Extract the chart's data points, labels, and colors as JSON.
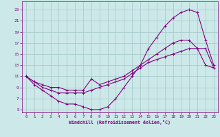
{
  "xlabel": "Windchill (Refroidissement éolien,°C)",
  "x_ticks": [
    0,
    1,
    2,
    3,
    4,
    5,
    6,
    7,
    8,
    9,
    10,
    11,
    12,
    13,
    14,
    15,
    16,
    17,
    18,
    19,
    20,
    21,
    22,
    23
  ],
  "y_ticks": [
    5,
    7,
    9,
    11,
    13,
    15,
    17,
    19,
    21,
    23
  ],
  "ylim": [
    4.5,
    24.5
  ],
  "xlim": [
    -0.5,
    23.5
  ],
  "bg_color": "#cce8e8",
  "line_color": "#800080",
  "grid_color": "#aacccc",
  "line1_x": [
    0,
    1,
    2,
    3,
    4,
    5,
    6,
    7,
    8,
    9,
    10,
    11,
    12,
    13,
    14,
    15,
    16,
    17,
    18,
    19,
    20,
    21,
    22,
    23
  ],
  "line1_y": [
    11,
    9.5,
    8.5,
    7.5,
    6.5,
    6.0,
    6.0,
    5.5,
    5.0,
    5.0,
    5.5,
    7.0,
    9.0,
    11.0,
    13.0,
    16.0,
    18.0,
    20.0,
    21.5,
    22.5,
    23.0,
    22.5,
    17.5,
    13.0
  ],
  "line2_x": [
    0,
    1,
    2,
    3,
    4,
    5,
    6,
    7,
    8,
    9,
    10,
    11,
    12,
    13,
    14,
    15,
    16,
    17,
    18,
    19,
    20,
    21,
    22,
    23
  ],
  "line2_y": [
    11,
    10.0,
    9.0,
    8.5,
    8.0,
    8.0,
    8.0,
    8.0,
    8.5,
    9.0,
    9.5,
    10.0,
    10.5,
    11.5,
    12.5,
    13.5,
    14.0,
    14.5,
    15.0,
    15.5,
    16.0,
    16.0,
    16.0,
    12.5
  ],
  "line3_x": [
    0,
    1,
    2,
    3,
    4,
    5,
    6,
    7,
    8,
    9,
    10,
    11,
    12,
    13,
    14,
    15,
    16,
    17,
    18,
    19,
    20,
    21,
    22,
    23
  ],
  "line3_y": [
    11,
    10.0,
    9.5,
    9.0,
    9.0,
    8.5,
    8.5,
    8.5,
    10.5,
    9.5,
    10.0,
    10.5,
    11.0,
    12.0,
    13.0,
    14.0,
    15.0,
    16.0,
    17.0,
    17.5,
    17.5,
    16.0,
    13.0,
    12.5
  ]
}
